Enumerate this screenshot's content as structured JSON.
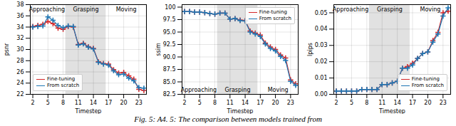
{
  "caption": "Fig. 5: A4. 5: The comparison between models trained from",
  "chart_data": [
    {
      "type": "line",
      "x": [
        2,
        3,
        4,
        5,
        6,
        7,
        8,
        9,
        10,
        11,
        12,
        13,
        14,
        15,
        16,
        17,
        18,
        19,
        20,
        21,
        22,
        23,
        24
      ],
      "xlabel": "Timestep",
      "ylabel": "psnr",
      "xlim": [
        1.5,
        24.5
      ],
      "xticks": [
        2,
        5,
        8,
        11,
        14,
        17,
        20,
        23
      ],
      "ylim": [
        22,
        38
      ],
      "yticks": [
        22,
        24,
        26,
        28,
        30,
        32,
        34,
        36,
        38
      ],
      "grid": true,
      "legend": "lower left",
      "marker": "plus",
      "series": [
        {
          "name": "Fine-tuning",
          "color": "#d62728",
          "error": 0.25,
          "values": [
            34.1,
            34.3,
            34.5,
            35.0,
            34.6,
            33.8,
            33.6,
            34.1,
            34.0,
            30.9,
            31.1,
            30.5,
            30.2,
            27.8,
            27.5,
            27.4,
            26.4,
            25.8,
            25.9,
            25.3,
            24.7,
            22.9,
            22.7
          ]
        },
        {
          "name": "From scratch",
          "color": "#1f77b4",
          "error": 0.25,
          "values": [
            34.0,
            34.1,
            34.2,
            35.8,
            35.2,
            34.3,
            33.9,
            34.2,
            34.1,
            30.8,
            31.0,
            30.4,
            30.1,
            27.7,
            27.4,
            27.2,
            26.2,
            25.5,
            25.6,
            24.9,
            24.4,
            23.2,
            23.1
          ]
        }
      ],
      "shaded_span": {
        "x1": 8.5,
        "x2": 16.5,
        "color": "#c8c8c8"
      },
      "annotations": [
        {
          "text": "Approaching",
          "x": 4.8,
          "position": "top"
        },
        {
          "text": "Grasping",
          "x": 12.5,
          "position": "top"
        },
        {
          "text": "Moving",
          "x": 20.5,
          "position": "top"
        }
      ]
    },
    {
      "type": "line",
      "x": [
        2,
        3,
        4,
        5,
        6,
        7,
        8,
        9,
        10,
        11,
        12,
        13,
        14,
        15,
        16,
        17,
        18,
        19,
        20,
        21,
        22,
        23,
        24
      ],
      "xlabel": "Timestep",
      "ylabel": "ssim",
      "xlim": [
        1.5,
        24.5
      ],
      "xticks": [
        2,
        5,
        8,
        11,
        14,
        17,
        20,
        23
      ],
      "ylim": [
        82.5,
        100.5
      ],
      "yticks": [
        82.5,
        {
          "value": 85,
          "label": "85.0"
        },
        87.5,
        {
          "value": 90,
          "label": "90.0"
        },
        92.5,
        {
          "value": 95,
          "label": "95.0"
        },
        97.5,
        100
      ],
      "grid": true,
      "legend": "upper right",
      "marker": "plus",
      "series": [
        {
          "name": "Fine-tuning",
          "color": "#d62728",
          "error": 0.15,
          "values": [
            99.1,
            99.1,
            99.0,
            99.0,
            98.9,
            98.7,
            98.6,
            98.8,
            98.8,
            97.6,
            97.7,
            97.4,
            97.3,
            95.2,
            94.8,
            94.4,
            92.8,
            92.0,
            91.5,
            90.4,
            89.8,
            85.4,
            84.6
          ]
        },
        {
          "name": "From scratch",
          "color": "#1f77b4",
          "error": 0.15,
          "values": [
            99.1,
            99.1,
            99.0,
            99.0,
            98.9,
            98.7,
            98.6,
            98.8,
            98.8,
            97.6,
            97.7,
            97.3,
            97.2,
            95.0,
            94.6,
            94.1,
            92.6,
            91.7,
            91.2,
            90.1,
            89.3,
            85.1,
            84.3
          ]
        }
      ],
      "shaded_span": {
        "x1": 8.5,
        "x2": 16.5,
        "color": "#c8c8c8"
      },
      "annotations": [
        {
          "text": "Approaching",
          "x": 4.8,
          "position": "bottom"
        },
        {
          "text": "Grasping",
          "x": 12.5,
          "position": "bottom"
        },
        {
          "text": "Moving",
          "x": 20.5,
          "position": "bottom"
        }
      ]
    },
    {
      "type": "line",
      "x": [
        2,
        3,
        4,
        5,
        6,
        7,
        8,
        9,
        10,
        11,
        12,
        13,
        14,
        15,
        16,
        17,
        18,
        19,
        20,
        21,
        22,
        23,
        24
      ],
      "xlabel": "Timestep",
      "ylabel": "lpips",
      "xlim": [
        1.5,
        24.5
      ],
      "xticks": [
        2,
        5,
        8,
        11,
        14,
        17,
        20,
        23
      ],
      "ylim": [
        0.0,
        0.055
      ],
      "yticks": [
        {
          "value": 0,
          "label": "0.00"
        },
        0.01,
        0.02,
        0.03,
        0.04,
        0.05
      ],
      "grid": true,
      "legend": "lower right",
      "marker": "plus",
      "series": [
        {
          "name": "Fine-tuning",
          "color": "#d62728",
          "error": 0.001,
          "values": [
            0.002,
            0.002,
            0.002,
            0.002,
            0.002,
            0.003,
            0.003,
            0.003,
            0.003,
            0.006,
            0.006,
            0.007,
            0.008,
            0.016,
            0.017,
            0.019,
            0.022,
            0.025,
            0.026,
            0.033,
            0.038,
            0.05,
            0.051
          ]
        },
        {
          "name": "From scratch",
          "color": "#1f77b4",
          "error": 0.001,
          "values": [
            0.002,
            0.002,
            0.002,
            0.002,
            0.002,
            0.003,
            0.003,
            0.003,
            0.003,
            0.006,
            0.006,
            0.007,
            0.008,
            0.016,
            0.016,
            0.018,
            0.022,
            0.025,
            0.026,
            0.032,
            0.037,
            0.048,
            0.053
          ]
        }
      ],
      "shaded_span": {
        "x1": 8.5,
        "x2": 16.5,
        "color": "#c8c8c8"
      },
      "annotations": [
        {
          "text": "Approaching",
          "x": 4.8,
          "position": "top"
        },
        {
          "text": "Grasping",
          "x": 12.5,
          "position": "top"
        },
        {
          "text": "Moving",
          "x": 20.5,
          "position": "top"
        }
      ]
    }
  ]
}
